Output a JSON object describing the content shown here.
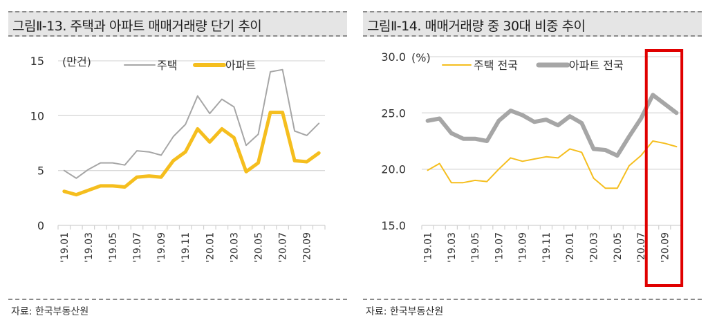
{
  "figures": [
    {
      "title": "그림Ⅱ-13. 주택과 아파트 매매거래량 단기 추이",
      "source": "자료: 한국부동산원"
    },
    {
      "title": "그림Ⅱ-14. 매매거래량 중 30대 비중 추이",
      "source": "자료: 한국부동산원"
    }
  ],
  "chart_data": [
    {
      "type": "line",
      "title": "그림Ⅱ-13. 주택과 아파트 매매거래량 단기 추이",
      "unit_label": "(만건)",
      "xlabel": "",
      "ylabel": "(만건)",
      "ylim": [
        0,
        15
      ],
      "yticks": [
        0,
        5,
        10,
        15
      ],
      "ytick_labels": [
        "0",
        "5",
        "10",
        "15"
      ],
      "grid": true,
      "legend_position": "top",
      "x": [
        "'19.01",
        "'19.02",
        "'19.03",
        "'19.04",
        "'19.05",
        "'19.06",
        "'19.07",
        "'19.08",
        "'19.09",
        "'19.10",
        "'19.11",
        "'19.12",
        "'20.01",
        "'20.02",
        "'20.03",
        "'20.04",
        "'20.05",
        "'20.06",
        "'20.07",
        "'20.08",
        "'20.09",
        "'20.10"
      ],
      "xtick_labels": [
        "'19.01",
        "'19.03",
        "'19.05",
        "'19.07",
        "'19.09",
        "'19.11",
        "'20.01",
        "'20.03",
        "'20.05",
        "'20.07",
        "'20.09"
      ],
      "series": [
        {
          "name": "주택",
          "color": "#a6a6a6",
          "style": "thin",
          "values": [
            5.0,
            4.3,
            5.1,
            5.7,
            5.7,
            5.5,
            6.8,
            6.7,
            6.4,
            8.1,
            9.2,
            11.8,
            10.2,
            11.5,
            10.8,
            7.3,
            8.3,
            14.0,
            14.2,
            8.6,
            8.2,
            9.3
          ]
        },
        {
          "name": "아파트",
          "color": "#f5be1e",
          "style": "thick",
          "values": [
            3.1,
            2.8,
            3.2,
            3.6,
            3.6,
            3.5,
            4.4,
            4.5,
            4.4,
            5.9,
            6.7,
            8.8,
            7.6,
            8.8,
            8.0,
            4.9,
            5.7,
            10.3,
            10.3,
            5.9,
            5.8,
            6.6
          ]
        }
      ]
    },
    {
      "type": "line",
      "title": "그림Ⅱ-14. 매매거래량 중 30대 비중 추이",
      "unit_label": "(%)",
      "xlabel": "",
      "ylabel": "(%)",
      "ylim": [
        15,
        30
      ],
      "yticks": [
        15,
        20,
        25,
        30
      ],
      "ytick_labels": [
        "15.0",
        "20.0",
        "25.0",
        "30.0"
      ],
      "grid": true,
      "legend_position": "top",
      "x": [
        "'19.01",
        "'19.02",
        "'19.03",
        "'19.04",
        "'19.05",
        "'19.06",
        "'19.07",
        "'19.08",
        "'19.09",
        "'19.10",
        "'19.11",
        "'19.12",
        "'20.01",
        "'20.02",
        "'20.03",
        "'20.04",
        "'20.05",
        "'20.06",
        "'20.07",
        "'20.08",
        "'20.09",
        "'20.10"
      ],
      "xtick_labels": [
        "'19.01",
        "'19.03",
        "'19.05",
        "'19.07",
        "'19.09",
        "'19.11",
        "'20.01",
        "'20.03",
        "'20.05",
        "'20.07",
        "'20.09"
      ],
      "series": [
        {
          "name": "주택 전국",
          "color": "#f5be1e",
          "style": "thin",
          "values": [
            19.9,
            20.5,
            18.8,
            18.8,
            19.0,
            18.9,
            20.0,
            21.0,
            20.7,
            20.9,
            21.1,
            21.0,
            21.8,
            21.5,
            19.2,
            18.3,
            18.3,
            20.3,
            21.2,
            22.5,
            22.3,
            22.0
          ]
        },
        {
          "name": "아파트 전국",
          "color": "#a6a6a6",
          "style": "thick",
          "values": [
            24.3,
            24.5,
            23.2,
            22.7,
            22.7,
            22.5,
            24.3,
            25.2,
            24.8,
            24.2,
            24.4,
            23.9,
            24.7,
            24.1,
            21.8,
            21.7,
            21.2,
            22.9,
            24.5,
            26.6,
            25.8,
            25.0
          ]
        }
      ],
      "annotation": {
        "type": "highlight-box",
        "color": "#e00000",
        "x_range": [
          "'20.08",
          "'20.10"
        ]
      }
    }
  ]
}
